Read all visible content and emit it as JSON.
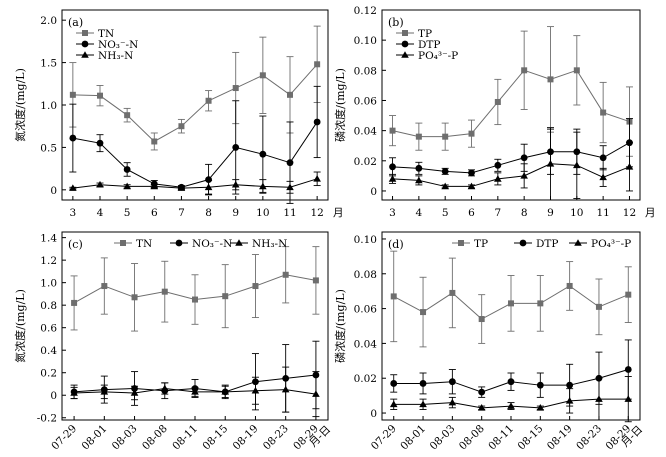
{
  "chart_data": [
    {
      "panel_label": "(a)",
      "type": "line",
      "ylabel": "氮浓度/(mg/L)",
      "x_unit": "月",
      "categories": [
        "3",
        "4",
        "5",
        "6",
        "7",
        "8",
        "9",
        "10",
        "11",
        "12"
      ],
      "yticks": [
        "0",
        "0.5",
        "1.0",
        "1.5",
        "2.0"
      ],
      "ylim": [
        -0.12,
        2.12
      ],
      "series": [
        {
          "name": "TN",
          "marker": "square",
          "values": [
            1.12,
            1.11,
            0.88,
            0.57,
            0.75,
            1.05,
            1.2,
            1.35,
            1.12,
            1.48
          ],
          "errors": [
            0.38,
            0.12,
            0.08,
            0.1,
            0.08,
            0.12,
            0.42,
            0.45,
            0.45,
            0.45
          ]
        },
        {
          "name": "NO₃⁻-N",
          "marker": "circle",
          "values": [
            0.61,
            0.55,
            0.24,
            0.07,
            0.03,
            0.12,
            0.5,
            0.42,
            0.32,
            0.8
          ],
          "errors": [
            0.4,
            0.1,
            0.08,
            0.04,
            0.02,
            0.18,
            0.55,
            0.45,
            0.48,
            0.42
          ]
        },
        {
          "name": "NH₃-N",
          "marker": "triangle",
          "values": [
            0.02,
            0.06,
            0.04,
            0.04,
            0.02,
            0.03,
            0.06,
            0.04,
            0.03,
            0.13
          ],
          "errors": [
            0.01,
            0.02,
            0.02,
            0.02,
            0.02,
            0.08,
            0.06,
            0.08,
            0.07,
            0.08
          ]
        }
      ]
    },
    {
      "panel_label": "(b)",
      "type": "line",
      "ylabel": "磷浓度/(mg/L)",
      "x_unit": "月",
      "categories": [
        "3",
        "4",
        "5",
        "6",
        "7",
        "8",
        "9",
        "10",
        "11",
        "12"
      ],
      "yticks": [
        "0",
        "0.02",
        "0.04",
        "0.06",
        "0.08",
        "0.10",
        "0.12"
      ],
      "ylim": [
        -0.006,
        0.12
      ],
      "series": [
        {
          "name": "TP",
          "marker": "square",
          "values": [
            0.04,
            0.036,
            0.036,
            0.038,
            0.059,
            0.08,
            0.074,
            0.08,
            0.052,
            0.046
          ],
          "errors": [
            0.01,
            0.009,
            0.009,
            0.009,
            0.015,
            0.026,
            0.035,
            0.023,
            0.02,
            0.023
          ]
        },
        {
          "name": "DTP",
          "marker": "circle",
          "values": [
            0.016,
            0.015,
            0.013,
            0.012,
            0.017,
            0.022,
            0.026,
            0.026,
            0.022,
            0.032
          ],
          "errors": [
            0.006,
            0.004,
            0.002,
            0.002,
            0.004,
            0.009,
            0.015,
            0.015,
            0.008,
            0.016
          ]
        },
        {
          "name": "PO₄³⁻-P",
          "marker": "triangle",
          "values": [
            0.008,
            0.007,
            0.003,
            0.003,
            0.008,
            0.01,
            0.018,
            0.017,
            0.009,
            0.016
          ],
          "errors": [
            0.003,
            0.003,
            0.001,
            0.001,
            0.004,
            0.008,
            0.024,
            0.022,
            0.006,
            0.016
          ]
        }
      ]
    },
    {
      "panel_label": "(c)",
      "type": "line",
      "ylabel": "氮浓度/(mg/L)",
      "x_unit": "月-日",
      "categories": [
        "07-29",
        "08-01",
        "08-03",
        "08-08",
        "08-11",
        "08-15",
        "08-19",
        "08-23",
        "08-29"
      ],
      "yticks": [
        "-0.2",
        "0",
        "0.2",
        "0.4",
        "0.6",
        "0.8",
        "1.0",
        "1.2",
        "1.4"
      ],
      "ylim": [
        -0.22,
        1.45
      ],
      "series": [
        {
          "name": "TN",
          "marker": "square",
          "values": [
            0.82,
            0.97,
            0.87,
            0.92,
            0.85,
            0.88,
            0.97,
            1.07,
            1.02
          ],
          "errors": [
            0.24,
            0.25,
            0.3,
            0.27,
            0.22,
            0.28,
            0.28,
            0.25,
            0.3
          ]
        },
        {
          "name": "NO₃⁻-N",
          "marker": "circle",
          "values": [
            0.03,
            0.05,
            0.06,
            0.04,
            0.06,
            0.03,
            0.12,
            0.15,
            0.18
          ],
          "errors": [
            0.06,
            0.12,
            0.15,
            0.07,
            0.08,
            0.06,
            0.25,
            0.3,
            0.3
          ]
        },
        {
          "name": "NH₃-N",
          "marker": "triangle",
          "values": [
            0.02,
            0.03,
            0.02,
            0.06,
            0.03,
            0.03,
            0.04,
            0.05,
            0.01
          ],
          "errors": [
            0.05,
            0.06,
            0.06,
            0.05,
            0.04,
            0.05,
            0.12,
            0.2,
            0.2
          ]
        }
      ]
    },
    {
      "panel_label": "(d)",
      "type": "line",
      "ylabel": "磷浓度/(mg/L)",
      "x_unit": "月-日",
      "categories": [
        "07-29",
        "08-01",
        "08-03",
        "08-08",
        "08-11",
        "08-15",
        "08-19",
        "08-23",
        "08-29"
      ],
      "yticks": [
        "0",
        "0.02",
        "0.04",
        "0.06",
        "0.08",
        "0.10"
      ],
      "ylim": [
        -0.004,
        0.104
      ],
      "series": [
        {
          "name": "TP",
          "marker": "square",
          "values": [
            0.067,
            0.058,
            0.069,
            0.054,
            0.063,
            0.063,
            0.073,
            0.061,
            0.068
          ],
          "errors": [
            0.026,
            0.02,
            0.02,
            0.014,
            0.016,
            0.016,
            0.014,
            0.016,
            0.016
          ]
        },
        {
          "name": "DTP",
          "marker": "circle",
          "values": [
            0.017,
            0.017,
            0.018,
            0.012,
            0.018,
            0.016,
            0.016,
            0.02,
            0.025
          ],
          "errors": [
            0.005,
            0.006,
            0.007,
            0.003,
            0.005,
            0.007,
            0.012,
            0.015,
            0.017
          ]
        },
        {
          "name": "PO₄³⁻-P",
          "marker": "triangle",
          "values": [
            0.005,
            0.005,
            0.006,
            0.003,
            0.004,
            0.003,
            0.007,
            0.008,
            0.008
          ],
          "errors": [
            0.003,
            0.003,
            0.003,
            0.001,
            0.002,
            0.001,
            0.007,
            0.012,
            0.013
          ]
        }
      ]
    }
  ],
  "colors": {
    "TN": "#6e6e6e",
    "NO": "#000000",
    "NH": "#000000"
  }
}
